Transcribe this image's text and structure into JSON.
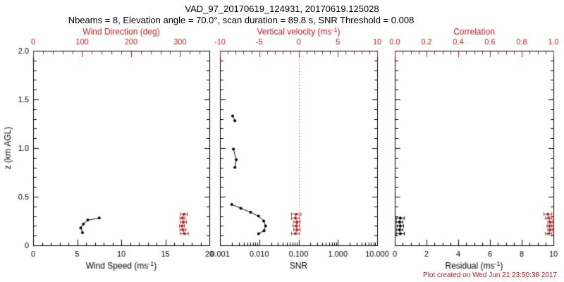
{
  "header": {
    "title": "VAD_97_20170619_124931, 20170619.125028",
    "subtitle": "Nbeams = 8, Elevation angle = 70.0°, scan duration = 89.8 s, SNR Threshold = 0.008"
  },
  "footer": {
    "credit": "Plot created on Wed Jun 21 23:50:38 2017"
  },
  "colors": {
    "background": "#ffffff",
    "axis": "#000000",
    "secondary": "#b22222"
  },
  "chart_data": {
    "type": "scatter",
    "title": "VAD_97_20170619_124931, 20170619.125028",
    "subtitle": "Nbeams = 8, Elevation angle = 70.0°, scan duration = 89.8 s, SNR Threshold = 0.008",
    "y_axis": {
      "label": "z (km AGL)",
      "min": 0,
      "max": 2,
      "ticks": [
        0,
        0.5,
        1,
        1.5,
        2
      ],
      "tick_labels": [
        "0",
        "0.5",
        "1.0",
        "1.5",
        "2.0"
      ],
      "minor_divisions": 5
    },
    "panels": [
      {
        "bottom_axis": {
          "label": "Wind Speed (ms⁻¹)",
          "scale": "linear",
          "min": 0,
          "max": 20,
          "ticks": [
            0,
            5,
            10,
            15,
            20
          ],
          "tick_labels": [
            "0",
            "5",
            "10",
            "15",
            "20"
          ],
          "minor_divisions": 5
        },
        "top_axis": {
          "label": "Wind Direction (deg)",
          "scale": "linear",
          "min": 0,
          "max": 360,
          "ticks": [
            0,
            100,
            200,
            300
          ],
          "tick_labels": [
            "0",
            "100",
            "200",
            "300"
          ],
          "minor_divisions": 5
        },
        "series": [
          {
            "name": "wind-speed",
            "axis": "bottom",
            "color": "#000000",
            "line": true,
            "z": [
              0.13,
              0.18,
              0.22,
              0.26,
              0.28
            ],
            "x": [
              5.6,
              5.4,
              5.7,
              6.2,
              7.5
            ]
          },
          {
            "name": "wind-direction",
            "axis": "top",
            "color": "#b22222",
            "line": true,
            "z": [
              0.12,
              0.16,
              0.2,
              0.24,
              0.28,
              0.32
            ],
            "x": [
              309,
              306,
              304,
              307,
              305,
              308
            ],
            "xerr": [
              8,
              6,
              5,
              6,
              5,
              7
            ]
          }
        ]
      },
      {
        "bottom_axis": {
          "label": "SNR",
          "scale": "log",
          "min": 0.001,
          "max": 10,
          "ticks": [
            0.001,
            0.01,
            0.1,
            1,
            10
          ],
          "tick_labels": [
            "0.001",
            "0.010",
            "0.100",
            "1.000",
            "10.000"
          ]
        },
        "top_axis": {
          "label": "Vertical velocity (ms⁻¹)",
          "scale": "linear",
          "min": -10,
          "max": 10,
          "ticks": [
            -10,
            -5,
            0,
            5,
            10
          ],
          "tick_labels": [
            "-10",
            "-5",
            "0",
            "5",
            "10"
          ],
          "minor_divisions": 5
        },
        "ref_line": {
          "axis": "top",
          "value": 0,
          "style": "dotted"
        },
        "series": [
          {
            "name": "snr",
            "axis": "bottom",
            "color": "#000000",
            "line": true,
            "z": [
              1.33,
              1.28,
              null,
              0.99,
              0.88,
              0.8,
              null,
              0.42,
              0.38,
              0.34,
              0.3,
              0.25,
              0.2,
              0.15,
              0.12
            ],
            "x": [
              0.0021,
              0.0024,
              null,
              0.0022,
              0.0026,
              0.0024,
              null,
              0.002,
              0.0034,
              0.006,
              0.0096,
              0.013,
              0.0145,
              0.0133,
              0.0096
            ]
          },
          {
            "name": "vertical-velocity",
            "axis": "top",
            "color": "#b22222",
            "line": true,
            "z": [
              0.12,
              0.16,
              0.2,
              0.24,
              0.28,
              0.32
            ],
            "x": [
              -0.4,
              -0.2,
              -0.3,
              -0.2,
              -0.4,
              -0.3
            ],
            "xerr": [
              0.5,
              0.4,
              0.4,
              0.4,
              0.5,
              0.6
            ]
          }
        ]
      },
      {
        "bottom_axis": {
          "label": "Residual (ms⁻¹)",
          "scale": "linear",
          "min": 0,
          "max": 10,
          "ticks": [
            0,
            2,
            4,
            6,
            8,
            10
          ],
          "tick_labels": [
            "0",
            "2",
            "4",
            "6",
            "8",
            "10"
          ],
          "minor_divisions": 4
        },
        "top_axis": {
          "label": "Correlation",
          "scale": "linear",
          "min": 0,
          "max": 1,
          "ticks": [
            0,
            0.2,
            0.4,
            0.6,
            0.8,
            1
          ],
          "tick_labels": [
            "0.0",
            "0.2",
            "0.4",
            "0.6",
            "0.8",
            "1.0"
          ],
          "minor_divisions": 4
        },
        "series": [
          {
            "name": "residual",
            "axis": "bottom",
            "color": "#000000",
            "line": true,
            "z": [
              0.12,
              0.16,
              0.2,
              0.24,
              0.28
            ],
            "x": [
              0.35,
              0.3,
              0.35,
              0.3,
              0.35
            ],
            "xerr": [
              0.25,
              0.2,
              0.2,
              0.2,
              0.25
            ]
          },
          {
            "name": "correlation",
            "axis": "top",
            "color": "#b22222",
            "line": true,
            "z": [
              0.12,
              0.16,
              0.2,
              0.24,
              0.28,
              0.32
            ],
            "x": [
              0.97,
              0.98,
              0.975,
              0.98,
              0.97,
              0.965
            ],
            "xerr": [
              0.02,
              0.015,
              0.015,
              0.015,
              0.02,
              0.025
            ]
          }
        ]
      }
    ]
  }
}
